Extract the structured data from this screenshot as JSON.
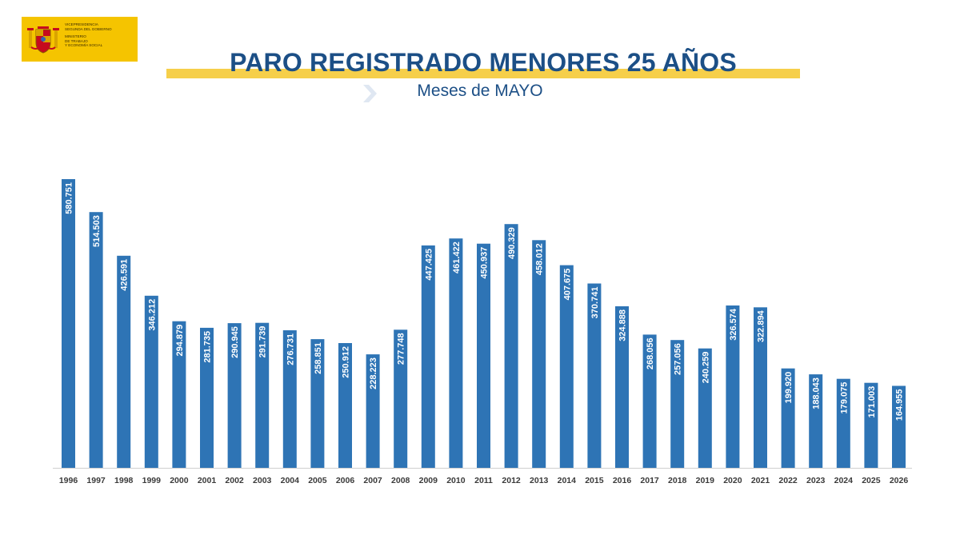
{
  "logo": {
    "ministry_line1": "VICEPRESIDENCIA",
    "ministry_line2": "SEGUNDA DEL GOBIERNO",
    "ministry_line3": "MINISTERIO",
    "ministry_line4": "DE TRABAJO",
    "ministry_line5": "Y ECONOMÍA SOCIAL",
    "colors": {
      "background": "#f5c400",
      "shield_red": "#c60b1e",
      "shield_gold": "#d9a400"
    }
  },
  "title_decoration_color": "#f6cf4a",
  "chart_data": {
    "type": "bar",
    "title": "PARO REGISTRADO MENORES 25 AÑOS",
    "subtitle": "Meses de MAYO",
    "bar_color": "#2e74b5",
    "label_color": "#ffffff",
    "categories": [
      "1996",
      "1997",
      "1998",
      "1999",
      "2000",
      "2001",
      "2002",
      "2003",
      "2004",
      "2005",
      "2006",
      "2007",
      "2008",
      "2009",
      "2010",
      "2011",
      "2012",
      "2013",
      "2014",
      "2015",
      "2016",
      "2017",
      "2018",
      "2019",
      "2020",
      "2021",
      "2022",
      "2023",
      "2024",
      "2025",
      "2026"
    ],
    "values": [
      580751,
      514503,
      426591,
      346212,
      294879,
      281735,
      290945,
      291739,
      276731,
      258851,
      250912,
      228223,
      277748,
      447425,
      461422,
      450937,
      490329,
      458012,
      407675,
      370741,
      324888,
      268056,
      257056,
      240259,
      326574,
      322894,
      199920,
      188043,
      179075,
      171003,
      164955
    ],
    "labels": [
      "580.751",
      "514.503",
      "426.591",
      "346.212",
      "294.879",
      "281.735",
      "290.945",
      "291.739",
      "276.731",
      "258.851",
      "250.912",
      "228.223",
      "277.748",
      "447.425",
      "461.422",
      "450.937",
      "490.329",
      "458.012",
      "407.675",
      "370.741",
      "324.888",
      "268.056",
      "257.056",
      "240.259",
      "326.574",
      "322.894",
      "199.920",
      "188.043",
      "179.075",
      "171.003",
      "164.955"
    ],
    "ylim": [
      0,
      580751
    ],
    "grid": false,
    "legend": "none"
  }
}
